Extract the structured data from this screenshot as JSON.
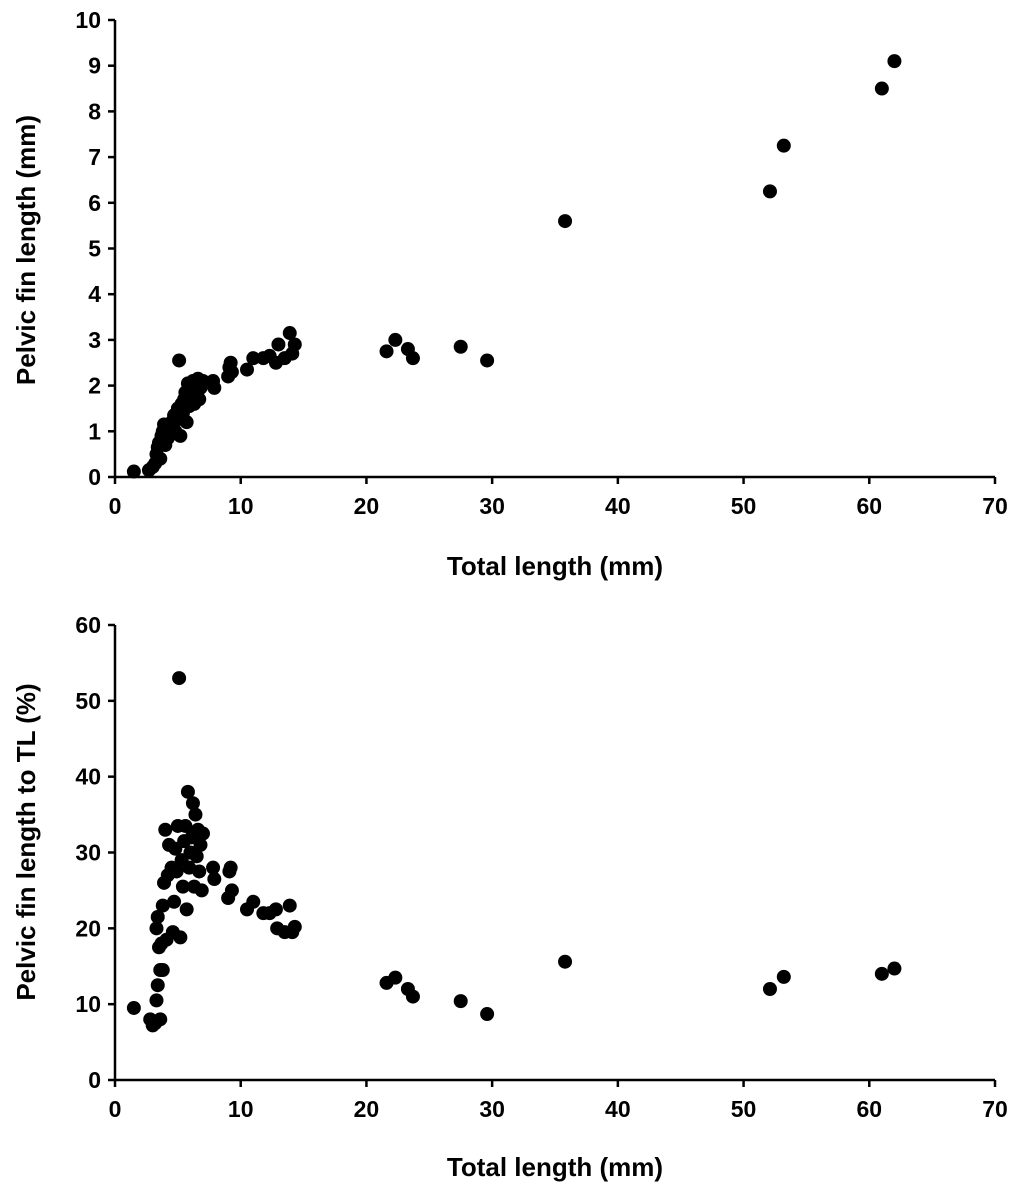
{
  "chart_data": [
    {
      "type": "scatter",
      "xlabel": "Total length (mm)",
      "ylabel": "Pelvic fin length (mm)",
      "xlim": [
        0,
        70
      ],
      "ylim": [
        0,
        10
      ],
      "xticks": [
        0,
        10,
        20,
        30,
        40,
        50,
        60,
        70
      ],
      "yticks": [
        0,
        1,
        2,
        3,
        4,
        5,
        6,
        7,
        8,
        9,
        10
      ],
      "grid": false,
      "marker_color": "#000000",
      "points": [
        [
          1.5,
          0.12
        ],
        [
          2.7,
          0.15
        ],
        [
          3.0,
          0.22
        ],
        [
          3.2,
          0.3
        ],
        [
          3.3,
          0.5
        ],
        [
          3.4,
          0.65
        ],
        [
          3.5,
          0.75
        ],
        [
          3.6,
          0.4
        ],
        [
          3.7,
          0.9
        ],
        [
          3.8,
          1.0
        ],
        [
          3.9,
          1.15
        ],
        [
          4.0,
          0.7
        ],
        [
          4.1,
          1.1
        ],
        [
          4.2,
          0.85
        ],
        [
          4.3,
          1.05
        ],
        [
          4.5,
          1.2
        ],
        [
          4.6,
          0.95
        ],
        [
          4.7,
          1.35
        ],
        [
          4.8,
          1.0
        ],
        [
          4.9,
          1.25
        ],
        [
          5.0,
          1.5
        ],
        [
          5.1,
          2.55
        ],
        [
          5.2,
          0.9
        ],
        [
          5.3,
          1.6
        ],
        [
          5.4,
          1.4
        ],
        [
          5.5,
          1.7
        ],
        [
          5.6,
          1.85
        ],
        [
          5.7,
          1.2
        ],
        [
          5.8,
          2.05
        ],
        [
          5.9,
          1.55
        ],
        [
          6.0,
          1.75
        ],
        [
          6.1,
          1.9
        ],
        [
          6.2,
          2.1
        ],
        [
          6.3,
          1.6
        ],
        [
          6.4,
          2.0
        ],
        [
          6.5,
          1.85
        ],
        [
          6.6,
          2.15
        ],
        [
          6.7,
          1.7
        ],
        [
          6.8,
          1.95
        ],
        [
          7.0,
          2.1
        ],
        [
          7.8,
          2.1
        ],
        [
          7.9,
          1.95
        ],
        [
          9.0,
          2.2
        ],
        [
          9.1,
          2.4
        ],
        [
          9.2,
          2.5
        ],
        [
          9.3,
          2.3
        ],
        [
          10.5,
          2.35
        ],
        [
          11.0,
          2.6
        ],
        [
          11.8,
          2.6
        ],
        [
          12.3,
          2.65
        ],
        [
          12.8,
          2.5
        ],
        [
          13.0,
          2.9
        ],
        [
          13.5,
          2.6
        ],
        [
          13.9,
          3.15
        ],
        [
          14.1,
          2.7
        ],
        [
          14.3,
          2.9
        ],
        [
          21.6,
          2.75
        ],
        [
          22.3,
          3.0
        ],
        [
          23.3,
          2.8
        ],
        [
          23.7,
          2.6
        ],
        [
          27.5,
          2.85
        ],
        [
          29.6,
          2.55
        ],
        [
          35.8,
          5.6
        ],
        [
          52.1,
          6.25
        ],
        [
          53.2,
          7.25
        ],
        [
          61.0,
          8.5
        ],
        [
          62.0,
          9.1
        ]
      ]
    },
    {
      "type": "scatter",
      "xlabel": "Total length (mm)",
      "ylabel": "Pelvic fin length to TL (%)",
      "xlim": [
        0,
        70
      ],
      "ylim": [
        0,
        60
      ],
      "xticks": [
        0,
        10,
        20,
        30,
        40,
        50,
        60,
        70
      ],
      "yticks": [
        0,
        10,
        20,
        30,
        40,
        50,
        60
      ],
      "grid": false,
      "marker_color": "#000000",
      "points": [
        [
          1.5,
          9.5
        ],
        [
          2.8,
          8.0
        ],
        [
          3.0,
          7.2
        ],
        [
          3.2,
          7.5
        ],
        [
          3.3,
          10.5
        ],
        [
          3.4,
          12.5
        ],
        [
          3.3,
          20.0
        ],
        [
          3.4,
          21.5
        ],
        [
          3.5,
          17.5
        ],
        [
          3.6,
          8.0
        ],
        [
          3.6,
          14.5
        ],
        [
          3.7,
          18.0
        ],
        [
          3.8,
          14.5
        ],
        [
          3.8,
          23.0
        ],
        [
          3.9,
          26.0
        ],
        [
          4.0,
          33.0
        ],
        [
          4.1,
          18.5
        ],
        [
          4.2,
          27.0
        ],
        [
          4.3,
          31.0
        ],
        [
          4.5,
          28.0
        ],
        [
          4.6,
          19.5
        ],
        [
          4.7,
          23.5
        ],
        [
          4.8,
          30.5
        ],
        [
          4.9,
          27.5
        ],
        [
          5.0,
          33.5
        ],
        [
          5.1,
          53.0
        ],
        [
          5.2,
          18.8
        ],
        [
          5.3,
          29.0
        ],
        [
          5.4,
          25.5
        ],
        [
          5.5,
          31.5
        ],
        [
          5.6,
          33.5
        ],
        [
          5.7,
          22.5
        ],
        [
          5.8,
          38.0
        ],
        [
          5.9,
          28.0
        ],
        [
          6.0,
          30.0
        ],
        [
          6.1,
          32.0
        ],
        [
          6.2,
          36.5
        ],
        [
          6.3,
          25.5
        ],
        [
          6.4,
          35.0
        ],
        [
          6.5,
          29.5
        ],
        [
          6.6,
          33.0
        ],
        [
          6.7,
          27.5
        ],
        [
          6.8,
          31.0
        ],
        [
          7.0,
          32.5
        ],
        [
          6.9,
          25.0
        ],
        [
          7.8,
          28.0
        ],
        [
          7.9,
          26.5
        ],
        [
          9.0,
          24.0
        ],
        [
          9.1,
          27.5
        ],
        [
          9.2,
          28.0
        ],
        [
          9.3,
          25.0
        ],
        [
          10.5,
          22.5
        ],
        [
          11.0,
          23.5
        ],
        [
          11.8,
          22.0
        ],
        [
          12.3,
          22.0
        ],
        [
          12.8,
          22.5
        ],
        [
          12.9,
          20.0
        ],
        [
          13.5,
          19.5
        ],
        [
          13.9,
          23.0
        ],
        [
          14.1,
          19.5
        ],
        [
          14.3,
          20.2
        ],
        [
          21.6,
          12.8
        ],
        [
          22.3,
          13.5
        ],
        [
          23.3,
          12.0
        ],
        [
          23.7,
          11.0
        ],
        [
          27.5,
          10.4
        ],
        [
          29.6,
          8.7
        ],
        [
          35.8,
          15.6
        ],
        [
          52.1,
          12.0
        ],
        [
          53.2,
          13.6
        ],
        [
          61.0,
          14.0
        ],
        [
          62.0,
          14.7
        ]
      ]
    }
  ]
}
